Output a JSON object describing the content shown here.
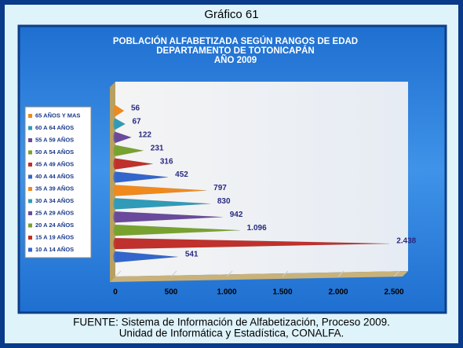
{
  "header": "Gráfico 61",
  "chart_data": {
    "type": "cone-bar",
    "orientation": "horizontal",
    "title": [
      "POBLACIÓN ALFABETIZADA SEGÚN RANGOS DE EDAD",
      "DEPARTAMENTO DE TOTONICAPÁN",
      "AÑO 2009"
    ],
    "categories": [
      "10 A 14 AÑOS",
      "15 A 19 AÑOS",
      "20 A 24 AÑOS",
      "25 A 29 AÑOS",
      "30 A 34 AÑOS",
      "35 A 39 AÑOS",
      "40 A 44 AÑOS",
      "45 A 49 AÑOS",
      "50 A 54 AÑOS",
      "55 A 59 AÑOS",
      "60 A 64 AÑOS",
      "65 AÑOS Y MAS"
    ],
    "values": [
      541,
      2438,
      1096,
      942,
      830,
      797,
      452,
      316,
      231,
      122,
      67,
      56
    ],
    "value_labels": [
      "541",
      "2.438",
      "1.096",
      "942",
      "830",
      "797",
      "452",
      "316",
      "231",
      "122",
      "67",
      "56"
    ],
    "colors": [
      "#3366cc",
      "#c0302c",
      "#78a22f",
      "#6a4a9c",
      "#2f9bb8",
      "#f08a1e",
      "#3366cc",
      "#c0302c",
      "#78a22f",
      "#6a4a9c",
      "#2f9bb8",
      "#f08a1e"
    ],
    "xlim": [
      0,
      2500
    ],
    "xticks": [
      0,
      500,
      {
        "value": 1000,
        "label": "1.000"
      },
      {
        "value": 1500,
        "label": "1.500"
      },
      {
        "value": 2000,
        "label": "2.000"
      },
      {
        "value": 2500,
        "label": "2.500"
      }
    ],
    "grid": true
  },
  "footer": [
    "FUENTE: Sistema de Información de Alfabetización, Proceso 2009.",
    "Unidad de Informática y Estadística, CONALFA."
  ]
}
